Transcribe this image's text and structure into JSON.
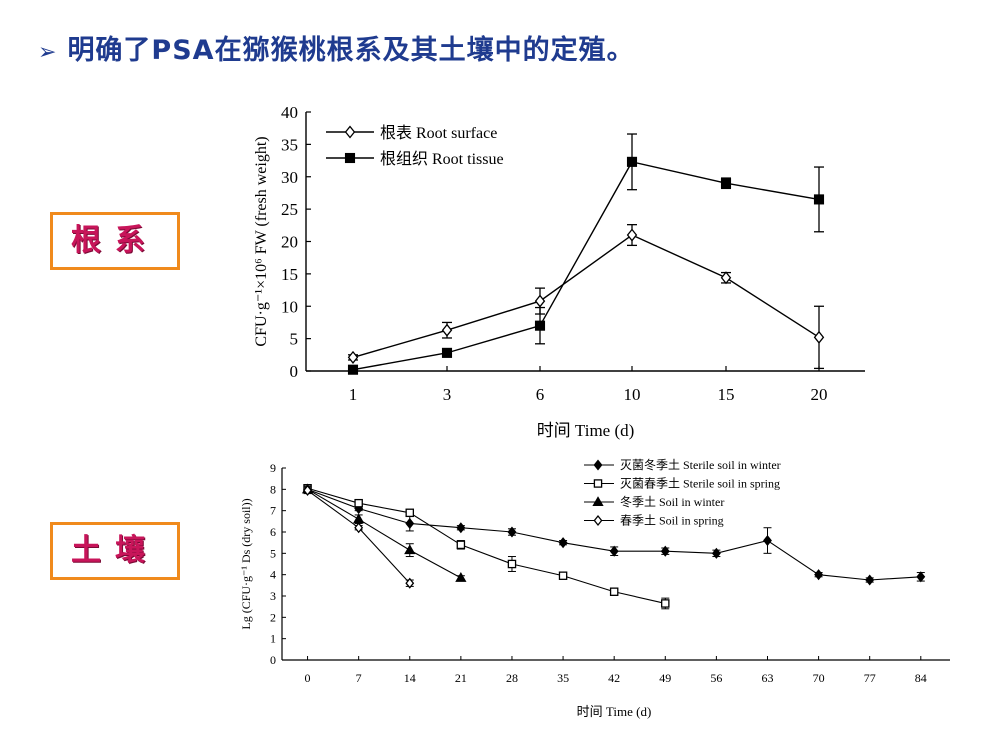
{
  "slide": {
    "bullet": "➢",
    "title": "明确了PSA在猕猴桃根系及其土壤中的定殖。",
    "label_root": "根系",
    "label_soil": "土壤"
  },
  "colors": {
    "title": "#1f3b8f",
    "label_border": "#f08a1c",
    "label_text": "#c8155a"
  },
  "chart_data": [
    {
      "type": "line",
      "xlabel": "时间 Time (d)",
      "ylabel": "CFU·g⁻¹×10⁶ FW (fresh weight)",
      "categories": [
        "1",
        "3",
        "6",
        "10",
        "15",
        "20"
      ],
      "ylim": [
        0,
        40
      ],
      "yticks": [
        0,
        5,
        10,
        15,
        20,
        25,
        30,
        35,
        40
      ],
      "legend_position": "top-left",
      "series": [
        {
          "name": "根表 Root surface",
          "marker": "open-diamond",
          "values": [
            2.1,
            6.3,
            10.8,
            21.0,
            14.4,
            5.2
          ],
          "errors": [
            0.4,
            1.2,
            2.0,
            1.6,
            0.8,
            4.8
          ]
        },
        {
          "name": "根组织 Root tissue",
          "marker": "filled-square",
          "values": [
            0.2,
            2.8,
            7.0,
            32.3,
            29.0,
            26.5
          ],
          "errors": [
            0.1,
            0.3,
            2.8,
            4.3,
            0.8,
            5.0
          ]
        }
      ]
    },
    {
      "type": "line",
      "xlabel": "时间 Time (d)",
      "ylabel": "Lg (CFU·g⁻¹ Ds (dry soil))",
      "x": [
        0,
        7,
        14,
        21,
        28,
        35,
        42,
        49,
        56,
        63,
        70,
        77,
        84
      ],
      "xlim": [
        -3.5,
        88
      ],
      "ylim": [
        0,
        9
      ],
      "yticks": [
        0,
        1,
        2,
        3,
        4,
        5,
        6,
        7,
        8,
        9
      ],
      "legend_position": "top-right",
      "series": [
        {
          "name": "灭菌冬季土 Sterile soil in winter",
          "marker": "filled-diamond",
          "points": [
            [
              0,
              8.0
            ],
            [
              7,
              7.1
            ],
            [
              14,
              6.4
            ],
            [
              21,
              6.2
            ],
            [
              28,
              6.0
            ],
            [
              35,
              5.5
            ],
            [
              42,
              5.1
            ],
            [
              49,
              5.1
            ],
            [
              56,
              5.0
            ],
            [
              63,
              5.6
            ],
            [
              70,
              4.0
            ],
            [
              77,
              3.75
            ],
            [
              84,
              3.9
            ]
          ],
          "errors": [
            0.15,
            0.1,
            0.35,
            0.1,
            0.15,
            0.1,
            0.2,
            0.15,
            0.15,
            0.6,
            0.1,
            0.1,
            0.2
          ]
        },
        {
          "name": "灭菌春季土 Sterile soil in spring",
          "marker": "open-square",
          "points": [
            [
              0,
              8.05
            ],
            [
              7,
              7.35
            ],
            [
              14,
              6.9
            ],
            [
              21,
              5.4
            ],
            [
              28,
              4.5
            ],
            [
              35,
              3.95
            ],
            [
              42,
              3.2
            ],
            [
              49,
              2.65
            ]
          ],
          "errors": [
            0.15,
            0.1,
            0.1,
            0.2,
            0.35,
            0.1,
            0.1,
            0.25
          ]
        },
        {
          "name": "冬季土 Soil in winter",
          "marker": "filled-triangle",
          "points": [
            [
              0,
              8.0
            ],
            [
              7,
              6.6
            ],
            [
              14,
              5.15
            ],
            [
              21,
              3.85
            ]
          ],
          "errors": [
            0.15,
            0.2,
            0.3,
            0.1
          ]
        },
        {
          "name": "春季土 Soil in spring",
          "marker": "open-diamond",
          "points": [
            [
              0,
              7.95
            ],
            [
              7,
              6.2
            ],
            [
              14,
              3.6
            ]
          ],
          "errors": [
            0.15,
            0.1,
            0.15
          ]
        }
      ]
    }
  ]
}
